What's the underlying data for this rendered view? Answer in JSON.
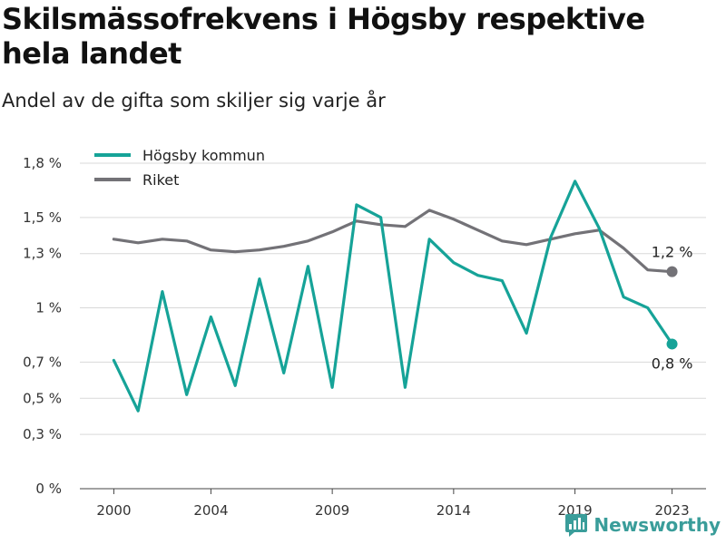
{
  "header": {
    "title": "Skilsmässofrekvens i Högsby respektive hela landet",
    "subtitle": "Andel av de gifta som skiljer sig varje år"
  },
  "brand": {
    "name": "Newsworthy",
    "color": "#3a9d9a",
    "icon": "newsworthy-logo-icon"
  },
  "chart_data": {
    "type": "line",
    "title": "Skilsmässofrekvens i Högsby respektive hela landet",
    "subtitle": "Andel av de gifta som skiljer sig varje år",
    "x": [
      2000,
      2001,
      2002,
      2003,
      2004,
      2005,
      2006,
      2007,
      2008,
      2009,
      2010,
      2011,
      2012,
      2013,
      2014,
      2015,
      2016,
      2017,
      2018,
      2019,
      2020,
      2021,
      2022,
      2023
    ],
    "xticks": [
      {
        "value": 2000,
        "label": "2000"
      },
      {
        "value": 2004,
        "label": "2004"
      },
      {
        "value": 2009,
        "label": "2009"
      },
      {
        "value": 2014,
        "label": "2014"
      },
      {
        "value": 2019,
        "label": "2019"
      },
      {
        "value": 2023,
        "label": "2023"
      }
    ],
    "ylim": [
      0,
      1.8
    ],
    "yticks": [
      {
        "value": 0,
        "label": "0 %"
      },
      {
        "value": 0.3,
        "label": "0,3 %"
      },
      {
        "value": 0.5,
        "label": "0,5 %"
      },
      {
        "value": 0.7,
        "label": "0,7 %"
      },
      {
        "value": 1.0,
        "label": "1 %"
      },
      {
        "value": 1.3,
        "label": "1,3 %"
      },
      {
        "value": 1.5,
        "label": "1,5 %"
      },
      {
        "value": 1.8,
        "label": "1,8 %"
      }
    ],
    "grid": true,
    "legend_position": "top-left",
    "series": [
      {
        "name": "Högsby kommun",
        "color": "#16a398",
        "values": [
          0.71,
          0.43,
          1.09,
          0.52,
          0.95,
          0.57,
          1.16,
          0.64,
          1.23,
          0.56,
          1.57,
          1.5,
          0.56,
          1.38,
          1.25,
          1.18,
          1.15,
          0.86,
          1.39,
          1.7,
          1.44,
          1.06,
          1.0,
          0.8
        ],
        "end_label": "0,8 %"
      },
      {
        "name": "Riket",
        "color": "#737277",
        "values": [
          1.38,
          1.36,
          1.38,
          1.37,
          1.32,
          1.31,
          1.32,
          1.34,
          1.37,
          1.42,
          1.48,
          1.46,
          1.45,
          1.54,
          1.49,
          1.43,
          1.37,
          1.35,
          1.38,
          1.41,
          1.43,
          1.33,
          1.21,
          1.2
        ],
        "end_label": "1,2 %"
      }
    ]
  }
}
